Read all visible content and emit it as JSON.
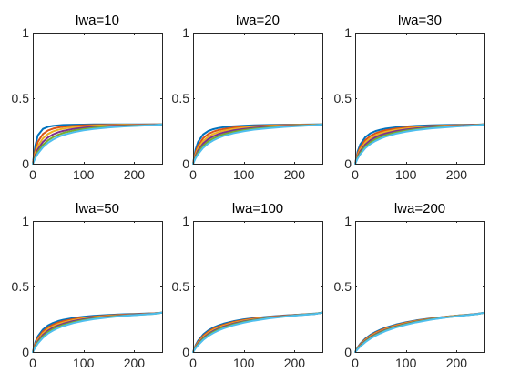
{
  "chart_data": {
    "type": "line",
    "layout": "2x3 grid of subplots",
    "xlim": [
      0,
      255
    ],
    "ylim": [
      0,
      1
    ],
    "xticks": [
      0,
      100,
      200
    ],
    "xtick_labels": [
      "0",
      "100",
      "200"
    ],
    "yticks": [
      0,
      0.5,
      1
    ],
    "ytick_labels": [
      "0",
      "0.5",
      "1"
    ],
    "grid": false,
    "legend": "none",
    "curve_x": [
      0,
      5,
      10,
      20,
      30,
      40,
      50,
      60,
      80,
      100,
      120,
      150,
      180,
      210,
      240,
      255
    ],
    "panels": [
      {
        "title": "lwa=10",
        "series": [
          {
            "color": "#0072BD",
            "values": [
              0,
              0.14,
              0.217,
              0.266,
              0.282,
              0.289,
              0.293,
              0.296,
              0.298,
              0.299,
              0.3,
              0.3,
              0.3,
              0.3,
              0.3,
              0.3
            ]
          },
          {
            "color": "#D95319",
            "values": [
              0,
              0.105,
              0.168,
              0.227,
              0.254,
              0.268,
              0.277,
              0.283,
              0.289,
              0.293,
              0.295,
              0.297,
              0.298,
              0.299,
              0.3,
              0.3
            ]
          },
          {
            "color": "#EDB120",
            "values": [
              0,
              0.082,
              0.135,
              0.194,
              0.227,
              0.247,
              0.259,
              0.268,
              0.279,
              0.285,
              0.289,
              0.293,
              0.296,
              0.298,
              0.299,
              0.3
            ]
          },
          {
            "color": "#7E2F8E",
            "values": [
              0,
              0.065,
              0.11,
              0.167,
              0.201,
              0.224,
              0.24,
              0.251,
              0.266,
              0.275,
              0.282,
              0.288,
              0.292,
              0.295,
              0.298,
              0.3
            ]
          },
          {
            "color": "#77AC30",
            "values": [
              0,
              0.053,
              0.092,
              0.144,
              0.179,
              0.203,
              0.221,
              0.235,
              0.253,
              0.265,
              0.274,
              0.283,
              0.288,
              0.292,
              0.296,
              0.3
            ]
          },
          {
            "color": "#4DBEEE",
            "values": [
              0,
              0.043,
              0.077,
              0.126,
              0.16,
              0.185,
              0.204,
              0.219,
              0.24,
              0.255,
              0.266,
              0.277,
              0.285,
              0.29,
              0.295,
              0.3
            ]
          }
        ]
      },
      {
        "title": "lwa=20",
        "series": [
          {
            "color": "#0072BD",
            "values": [
              0,
              0.11,
              0.168,
              0.224,
              0.25,
              0.264,
              0.273,
              0.279,
              0.286,
              0.29,
              0.293,
              0.296,
              0.298,
              0.299,
              0.3,
              0.3
            ]
          },
          {
            "color": "#D95319",
            "values": [
              0,
              0.088,
              0.14,
              0.196,
              0.227,
              0.245,
              0.257,
              0.265,
              0.276,
              0.282,
              0.287,
              0.292,
              0.295,
              0.297,
              0.299,
              0.3
            ]
          },
          {
            "color": "#EDB120",
            "values": [
              0,
              0.072,
              0.119,
              0.174,
              0.206,
              0.227,
              0.241,
              0.252,
              0.266,
              0.275,
              0.281,
              0.287,
              0.292,
              0.295,
              0.298,
              0.3
            ]
          },
          {
            "color": "#7E2F8E",
            "values": [
              0,
              0.06,
              0.102,
              0.155,
              0.188,
              0.21,
              0.226,
              0.238,
              0.255,
              0.266,
              0.274,
              0.282,
              0.288,
              0.292,
              0.296,
              0.3
            ]
          },
          {
            "color": "#77AC30",
            "values": [
              0,
              0.05,
              0.087,
              0.138,
              0.171,
              0.194,
              0.211,
              0.225,
              0.244,
              0.257,
              0.267,
              0.277,
              0.284,
              0.29,
              0.295,
              0.3
            ]
          },
          {
            "color": "#4DBEEE",
            "values": [
              0,
              0.042,
              0.074,
              0.122,
              0.155,
              0.179,
              0.197,
              0.212,
              0.233,
              0.248,
              0.26,
              0.272,
              0.281,
              0.288,
              0.294,
              0.3
            ]
          }
        ]
      },
      {
        "title": "lwa=30",
        "series": [
          {
            "color": "#0072BD",
            "values": [
              0,
              0.095,
              0.148,
              0.203,
              0.232,
              0.249,
              0.26,
              0.268,
              0.278,
              0.284,
              0.289,
              0.293,
              0.296,
              0.298,
              0.299,
              0.3
            ]
          },
          {
            "color": "#D95319",
            "values": [
              0,
              0.078,
              0.126,
              0.181,
              0.212,
              0.232,
              0.245,
              0.255,
              0.268,
              0.276,
              0.282,
              0.288,
              0.292,
              0.295,
              0.298,
              0.3
            ]
          },
          {
            "color": "#EDB120",
            "values": [
              0,
              0.066,
              0.109,
              0.163,
              0.195,
              0.217,
              0.232,
              0.243,
              0.259,
              0.269,
              0.276,
              0.284,
              0.289,
              0.293,
              0.297,
              0.3
            ]
          },
          {
            "color": "#7E2F8E",
            "values": [
              0,
              0.056,
              0.095,
              0.147,
              0.18,
              0.202,
              0.219,
              0.231,
              0.249,
              0.261,
              0.27,
              0.279,
              0.286,
              0.291,
              0.296,
              0.3
            ]
          },
          {
            "color": "#77AC30",
            "values": [
              0,
              0.048,
              0.083,
              0.133,
              0.165,
              0.188,
              0.205,
              0.219,
              0.239,
              0.253,
              0.263,
              0.274,
              0.282,
              0.288,
              0.294,
              0.3
            ]
          },
          {
            "color": "#4DBEEE",
            "values": [
              0,
              0.04,
              0.072,
              0.119,
              0.151,
              0.174,
              0.192,
              0.207,
              0.229,
              0.245,
              0.257,
              0.27,
              0.279,
              0.287,
              0.293,
              0.3
            ]
          }
        ]
      },
      {
        "title": "lwa=50",
        "series": [
          {
            "color": "#0072BD",
            "values": [
              0,
              0.075,
              0.12,
              0.172,
              0.203,
              0.222,
              0.236,
              0.246,
              0.26,
              0.269,
              0.276,
              0.283,
              0.288,
              0.292,
              0.296,
              0.3
            ]
          },
          {
            "color": "#D95319",
            "values": [
              0,
              0.064,
              0.105,
              0.156,
              0.188,
              0.209,
              0.224,
              0.235,
              0.251,
              0.262,
              0.27,
              0.279,
              0.285,
              0.29,
              0.295,
              0.3
            ]
          },
          {
            "color": "#EDB120",
            "values": [
              0,
              0.055,
              0.093,
              0.143,
              0.175,
              0.197,
              0.213,
              0.225,
              0.243,
              0.256,
              0.265,
              0.275,
              0.282,
              0.288,
              0.294,
              0.3
            ]
          },
          {
            "color": "#7E2F8E",
            "values": [
              0,
              0.048,
              0.083,
              0.131,
              0.163,
              0.186,
              0.203,
              0.216,
              0.236,
              0.25,
              0.26,
              0.271,
              0.28,
              0.287,
              0.293,
              0.3
            ]
          },
          {
            "color": "#77AC30",
            "values": [
              0,
              0.042,
              0.074,
              0.12,
              0.152,
              0.175,
              0.193,
              0.207,
              0.228,
              0.244,
              0.255,
              0.268,
              0.278,
              0.285,
              0.292,
              0.3
            ]
          },
          {
            "color": "#4DBEEE",
            "values": [
              0,
              0.036,
              0.065,
              0.109,
              0.141,
              0.164,
              0.183,
              0.198,
              0.221,
              0.238,
              0.251,
              0.265,
              0.276,
              0.284,
              0.292,
              0.3
            ]
          }
        ]
      },
      {
        "title": "lwa=100",
        "series": [
          {
            "color": "#0072BD",
            "values": [
              0,
              0.052,
              0.087,
              0.134,
              0.165,
              0.187,
              0.203,
              0.216,
              0.235,
              0.249,
              0.259,
              0.27,
              0.279,
              0.286,
              0.293,
              0.3
            ]
          },
          {
            "color": "#D95319",
            "values": [
              0,
              0.046,
              0.078,
              0.124,
              0.155,
              0.178,
              0.195,
              0.208,
              0.229,
              0.244,
              0.255,
              0.267,
              0.277,
              0.285,
              0.292,
              0.3
            ]
          },
          {
            "color": "#EDB120",
            "values": [
              0,
              0.041,
              0.071,
              0.115,
              0.146,
              0.169,
              0.187,
              0.201,
              0.223,
              0.239,
              0.251,
              0.265,
              0.275,
              0.284,
              0.292,
              0.3
            ]
          },
          {
            "color": "#7E2F8E",
            "values": [
              0,
              0.037,
              0.065,
              0.107,
              0.138,
              0.161,
              0.179,
              0.194,
              0.217,
              0.234,
              0.247,
              0.262,
              0.274,
              0.283,
              0.291,
              0.3
            ]
          },
          {
            "color": "#77AC30",
            "values": [
              0,
              0.033,
              0.059,
              0.1,
              0.13,
              0.153,
              0.172,
              0.187,
              0.211,
              0.229,
              0.243,
              0.26,
              0.272,
              0.282,
              0.291,
              0.3
            ]
          },
          {
            "color": "#4DBEEE",
            "values": [
              0,
              0.029,
              0.053,
              0.092,
              0.122,
              0.145,
              0.164,
              0.18,
              0.205,
              0.224,
              0.239,
              0.257,
              0.27,
              0.281,
              0.29,
              0.3
            ]
          }
        ]
      },
      {
        "title": "lwa=200",
        "series": [
          {
            "color": "#0072BD",
            "values": [
              0,
              0.036,
              0.063,
              0.102,
              0.131,
              0.153,
              0.171,
              0.186,
              0.209,
              0.227,
              0.241,
              0.257,
              0.27,
              0.281,
              0.291,
              0.3
            ]
          },
          {
            "color": "#D95319",
            "values": [
              0,
              0.033,
              0.058,
              0.096,
              0.125,
              0.147,
              0.165,
              0.18,
              0.204,
              0.223,
              0.238,
              0.255,
              0.269,
              0.28,
              0.29,
              0.3
            ]
          },
          {
            "color": "#EDB120",
            "values": [
              0,
              0.03,
              0.054,
              0.09,
              0.119,
              0.141,
              0.159,
              0.175,
              0.2,
              0.219,
              0.235,
              0.253,
              0.268,
              0.28,
              0.29,
              0.3
            ]
          },
          {
            "color": "#7E2F8E",
            "values": [
              0,
              0.027,
              0.05,
              0.085,
              0.113,
              0.135,
              0.154,
              0.17,
              0.195,
              0.215,
              0.232,
              0.251,
              0.266,
              0.279,
              0.29,
              0.3
            ]
          },
          {
            "color": "#77AC30",
            "values": [
              0,
              0.025,
              0.046,
              0.08,
              0.108,
              0.13,
              0.149,
              0.165,
              0.191,
              0.212,
              0.229,
              0.249,
              0.265,
              0.278,
              0.289,
              0.3
            ]
          },
          {
            "color": "#4DBEEE",
            "values": [
              0,
              0.022,
              0.042,
              0.075,
              0.102,
              0.124,
              0.143,
              0.16,
              0.187,
              0.208,
              0.226,
              0.247,
              0.264,
              0.277,
              0.289,
              0.3
            ]
          }
        ]
      }
    ]
  }
}
